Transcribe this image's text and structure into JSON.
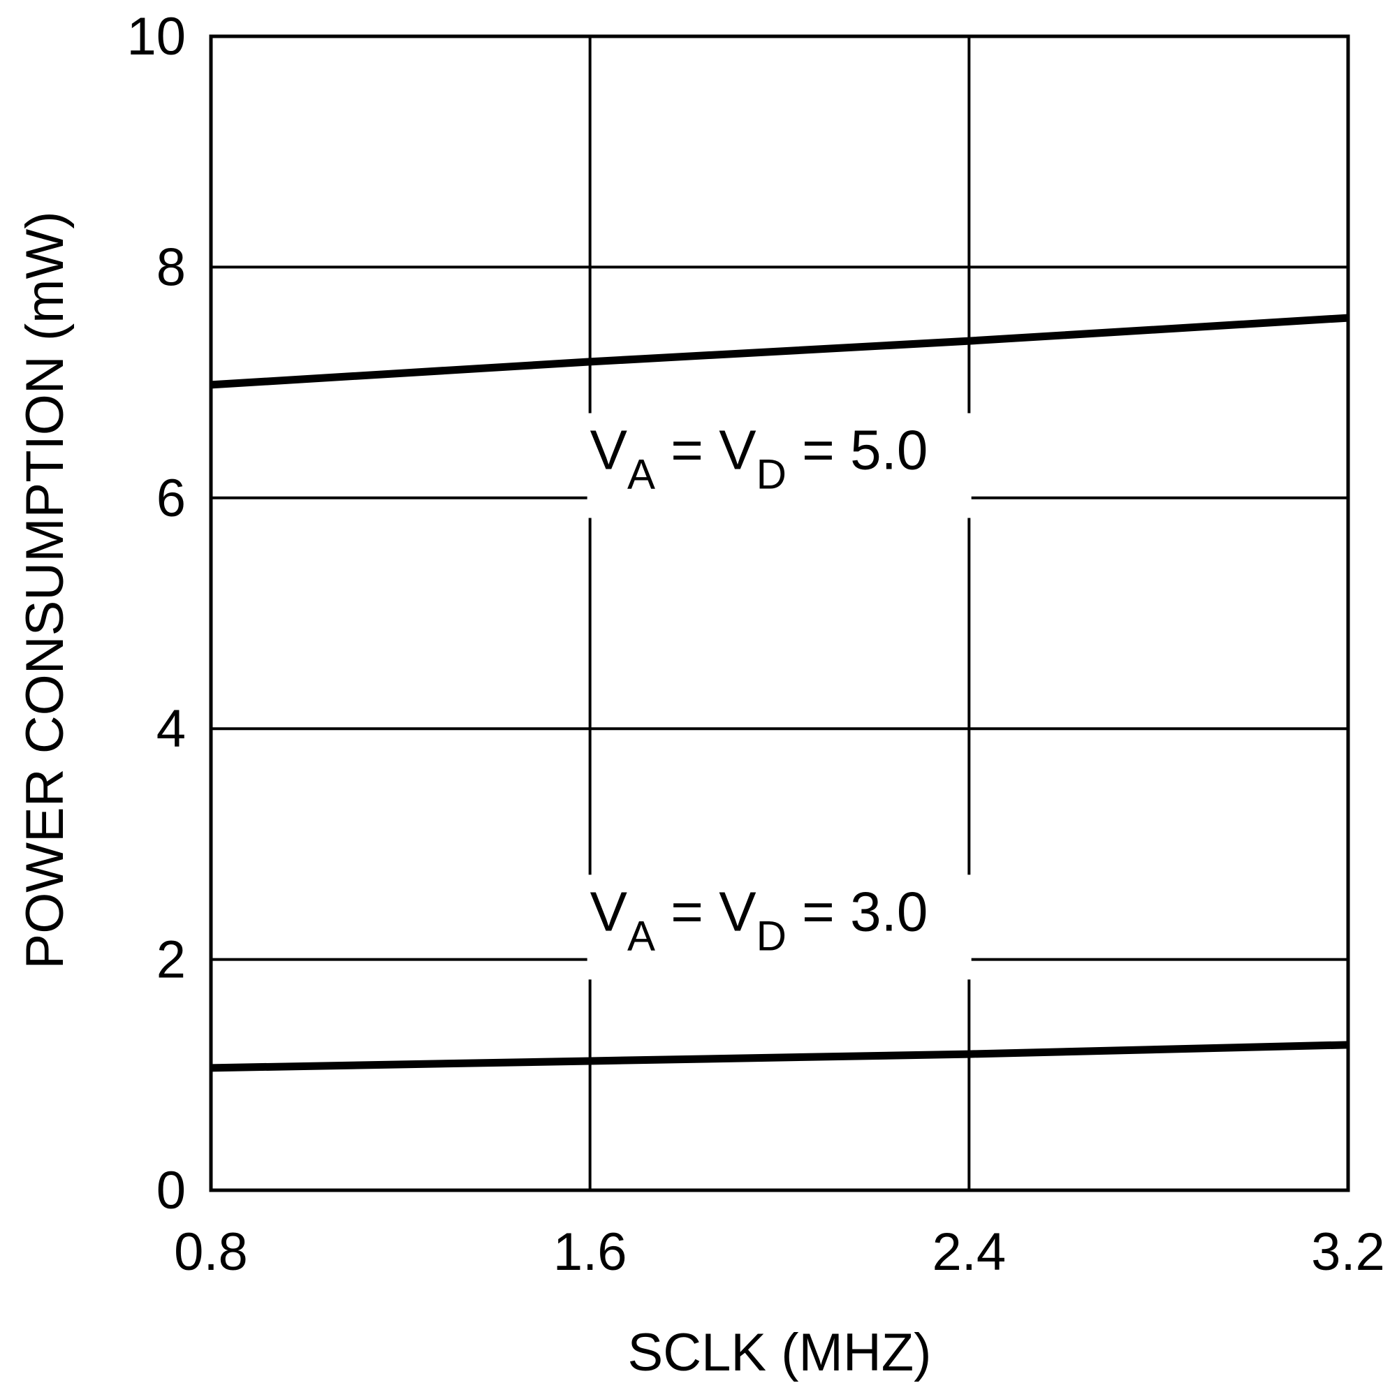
{
  "chart_data": {
    "type": "line",
    "title": "",
    "xlabel": "SCLK (MHZ)",
    "ylabel": "POWER CONSUMPTION (mW)",
    "xlim": [
      0.8,
      3.2
    ],
    "ylim": [
      0,
      10
    ],
    "x_ticks": [
      0.8,
      1.6,
      2.4,
      3.2
    ],
    "x_tick_labels": [
      "0.8",
      "1.6",
      "2.4",
      "3.2"
    ],
    "y_ticks": [
      0,
      2,
      4,
      6,
      8,
      10
    ],
    "y_tick_labels": [
      "0",
      "2",
      "4",
      "6",
      "8",
      "10"
    ],
    "grid": true,
    "line_color": "#000000",
    "series": [
      {
        "name": "VA = VD = 5.0",
        "label_parts": [
          "V",
          "A",
          " = V",
          "D",
          " = 5.0"
        ],
        "x": [
          0.8,
          1.6,
          2.4,
          3.2
        ],
        "values": [
          6.98,
          7.18,
          7.36,
          7.56
        ]
      },
      {
        "name": "VA = VD = 3.0",
        "label_parts": [
          "V",
          "A",
          " = V",
          "D",
          " = 3.0"
        ],
        "x": [
          0.8,
          1.6,
          2.4,
          3.2
        ],
        "values": [
          1.06,
          1.12,
          1.18,
          1.26
        ]
      }
    ]
  }
}
